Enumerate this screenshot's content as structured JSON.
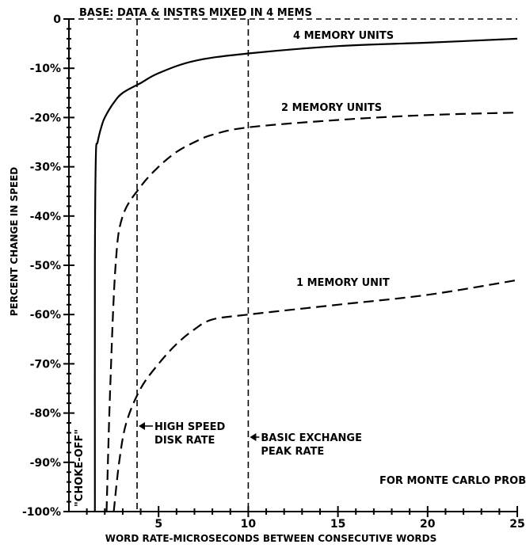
{
  "chart_data": {
    "type": "line",
    "xlabel": "WORD RATE-MICROSECONDS BETWEEN CONSECUTIVE WORDS",
    "ylabel": "PERCENT CHANGE IN SPEED",
    "xlim": [
      0,
      25
    ],
    "ylim": [
      -100,
      0
    ],
    "x_ticks": [
      5,
      10,
      15,
      20,
      25
    ],
    "y_ticks": [
      "0",
      "-10%",
      "-20%",
      "-30%",
      "-40%",
      "-50%",
      "-60%",
      "-70%",
      "-80%",
      "-90%",
      "-100%"
    ],
    "y_tick_values": [
      0,
      -10,
      -20,
      -30,
      -40,
      -50,
      -60,
      -70,
      -80,
      -90,
      -100
    ],
    "grid": false,
    "series": [
      {
        "name": "4 MEMORY UNITS",
        "style": "solid",
        "x": [
          1.45,
          1.45,
          1.5,
          1.6,
          1.8,
          2.0,
          2.5,
          3.0,
          4.0,
          5.0,
          7.0,
          10.0,
          15.0,
          20.0,
          25.0
        ],
        "y": [
          -100,
          -50,
          -28,
          -25,
          -22,
          -20,
          -17,
          -15,
          -13,
          -11,
          -8.5,
          -7,
          -5.5,
          -4.8,
          -4
        ]
      },
      {
        "name": "2 MEMORY UNITS",
        "style": "dashed",
        "x": [
          2.1,
          2.3,
          2.6,
          3.0,
          4.0,
          5.0,
          6.0,
          7.0,
          8.0,
          10.0,
          15.0,
          20.0,
          25.0
        ],
        "y": [
          -100,
          -75,
          -50,
          -40,
          -34,
          -30,
          -27,
          -25,
          -23.5,
          -22,
          -20.5,
          -19.5,
          -19
        ]
      },
      {
        "name": "1 MEMORY UNIT",
        "style": "dashed",
        "x": [
          2.5,
          2.8,
          3.2,
          4.0,
          5.0,
          6.0,
          7.0,
          8.0,
          10.0,
          15.0,
          20.0,
          25.0
        ],
        "y": [
          -100,
          -90,
          -82,
          -75,
          -70,
          -66,
          -63,
          -61,
          -60,
          -58,
          -56,
          -53
        ]
      }
    ],
    "reference_lines": [
      {
        "axis": "y",
        "value": 0,
        "label": "BASE: DATA & INSTRS MIXED IN 4 MEMS"
      },
      {
        "axis": "x",
        "value": 3.8,
        "label_lines": [
          "HIGH SPEED",
          "DISK RATE"
        ]
      },
      {
        "axis": "x",
        "value": 10,
        "label_lines": [
          "BASIC EXCHANGE",
          "PEAK RATE"
        ]
      }
    ],
    "annotations": {
      "choke_off": "\"CHOKE-OFF\"",
      "problem": "FOR MONTE CARLO PROB"
    }
  }
}
